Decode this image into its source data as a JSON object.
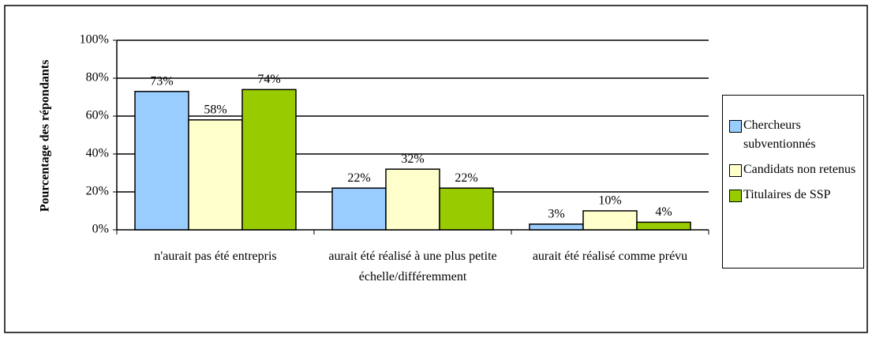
{
  "chart_data": {
    "type": "bar",
    "y_label": "Pourcentage des répondants",
    "categories": [
      "n'aurait pas été entrepris",
      "aurait été réalisé à une plus petite échelle/différemment",
      "aurait été réalisé comme prévu"
    ],
    "series": [
      {
        "name": "Chercheurs subventionnés",
        "color": "#99ccff",
        "values": [
          73,
          22,
          3
        ],
        "value_labels": [
          "73%",
          "22%",
          "3%"
        ]
      },
      {
        "name": "Candidats non retenus",
        "color": "#ffffcc",
        "values": [
          58,
          32,
          10
        ],
        "value_labels": [
          "58%",
          "32%",
          "10%"
        ]
      },
      {
        "name": "Titulaires de SSP",
        "color": "#99cc00",
        "values": [
          74,
          22,
          4
        ],
        "value_labels": [
          "74%",
          "22%",
          "4%"
        ]
      }
    ],
    "ylim": [
      0,
      100
    ],
    "yticks": [
      {
        "value": 0,
        "label": "0%"
      },
      {
        "value": 20,
        "label": "20%"
      },
      {
        "value": 40,
        "label": "40%"
      },
      {
        "value": 60,
        "label": "60%"
      },
      {
        "value": 80,
        "label": "80%"
      },
      {
        "value": 100,
        "label": "100%"
      }
    ],
    "grid": true
  }
}
